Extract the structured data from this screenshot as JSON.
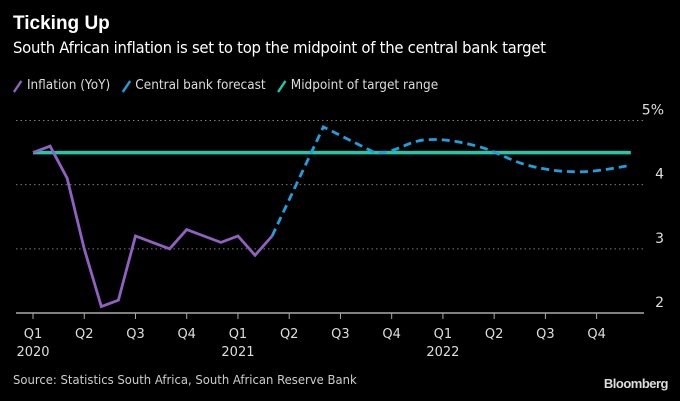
{
  "chart_data": {
    "type": "line",
    "title": "Ticking Up",
    "subtitle": "South African inflation is set to top the midpoint of the central bank target",
    "xlabel": "",
    "ylabel": "",
    "ylim": [
      2,
      5
    ],
    "y_ticks": [
      {
        "value": 5,
        "label": "5%"
      },
      {
        "value": 4,
        "label": "4"
      },
      {
        "value": 3,
        "label": "3"
      },
      {
        "value": 2,
        "label": "2"
      }
    ],
    "grid": true,
    "legend_position": "top-left",
    "x_range_months": [
      0,
      36
    ],
    "x_ticks": [
      {
        "month": 0,
        "label": "Q1",
        "year": "2020"
      },
      {
        "month": 3,
        "label": "Q2",
        "year": ""
      },
      {
        "month": 6,
        "label": "Q3",
        "year": ""
      },
      {
        "month": 9,
        "label": "Q4",
        "year": ""
      },
      {
        "month": 12,
        "label": "Q1",
        "year": "2021"
      },
      {
        "month": 15,
        "label": "Q2",
        "year": ""
      },
      {
        "month": 18,
        "label": "Q3",
        "year": ""
      },
      {
        "month": 21,
        "label": "Q4",
        "year": ""
      },
      {
        "month": 24,
        "label": "Q1",
        "year": "2022"
      },
      {
        "month": 27,
        "label": "Q2",
        "year": ""
      },
      {
        "month": 30,
        "label": "Q3",
        "year": ""
      },
      {
        "month": 33,
        "label": "Q4",
        "year": ""
      }
    ],
    "series": [
      {
        "name": "Inflation (YoY)",
        "color": "#9061c2",
        "style": "solid",
        "x": [
          "2020-01",
          "2020-02",
          "2020-03",
          "2020-04",
          "2020-05",
          "2020-06",
          "2020-07",
          "2020-08",
          "2020-09",
          "2020-10",
          "2020-11",
          "2020-12",
          "2021-01",
          "2021-02",
          "2021-03"
        ],
        "month_index": [
          0,
          1,
          2,
          3,
          4,
          5,
          6,
          7,
          8,
          9,
          10,
          11,
          12,
          13,
          14
        ],
        "values": [
          4.5,
          4.6,
          4.1,
          3.0,
          2.1,
          2.2,
          3.2,
          3.1,
          3.0,
          3.3,
          3.2,
          3.1,
          3.2,
          2.9,
          3.2
        ]
      },
      {
        "name": "Central bank forecast",
        "color": "#1ba1e2",
        "style": "dashed",
        "x": [
          "2021-03",
          "2021-06",
          "2021-09",
          "2021-12",
          "2022-03",
          "2022-06",
          "2022-09",
          "2022-12"
        ],
        "month_index": [
          14,
          17,
          20,
          23,
          26,
          29,
          32,
          35
        ],
        "values": [
          3.2,
          4.9,
          4.5,
          4.7,
          4.6,
          4.3,
          4.2,
          4.3
        ]
      },
      {
        "name": "Midpoint of target range",
        "color": "#22c8a8",
        "style": "solid",
        "x": [
          "2020-01",
          "2022-12"
        ],
        "month_index": [
          0,
          35
        ],
        "values": [
          4.5,
          4.5
        ]
      }
    ],
    "source": "Source: Statistics South Africa, South African Reserve Bank",
    "brand": "Bloomberg"
  }
}
